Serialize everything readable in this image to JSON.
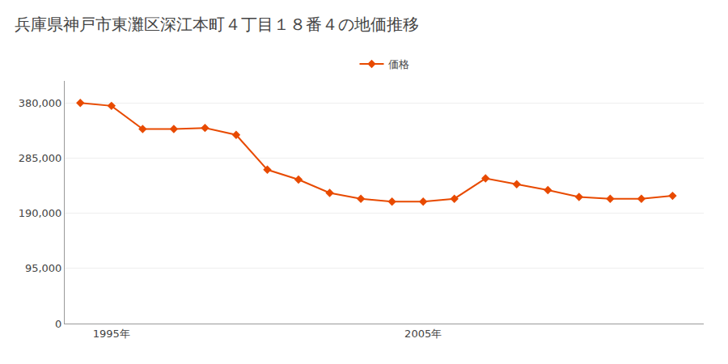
{
  "chart_data": {
    "type": "line",
    "title": "兵庫県神戸市東灘区深江本町４丁目１８番４の地価推移",
    "x": [
      1994,
      1995,
      1996,
      1997,
      1998,
      1999,
      2000,
      2001,
      2002,
      2003,
      2004,
      2005,
      2006,
      2007,
      2008,
      2009,
      2010,
      2011,
      2012,
      2013
    ],
    "series": [
      {
        "name": "価格",
        "color": "#E84A00",
        "marker": "diamond",
        "line_style": "solid",
        "values": [
          380000,
          375000,
          335000,
          335000,
          337000,
          325000,
          265000,
          248000,
          225000,
          215000,
          210000,
          210000,
          215000,
          250000,
          240000,
          230000,
          218000,
          215000,
          215000,
          220000
        ]
      }
    ],
    "xlim": [
      1993.5,
      2014
    ],
    "xticks": [
      {
        "value": 1995,
        "label": "1995年"
      },
      {
        "value": 2005,
        "label": "2005年"
      }
    ],
    "ylim": [
      0,
      418000
    ],
    "yticks": [
      0,
      {
        "value": 95000,
        "label": "95,000"
      },
      {
        "value": 190000,
        "label": "190,000"
      },
      {
        "value": 285000,
        "label": "285,000"
      },
      {
        "value": 380000,
        "label": "380,000"
      }
    ],
    "grid": "y",
    "legend": "top"
  }
}
